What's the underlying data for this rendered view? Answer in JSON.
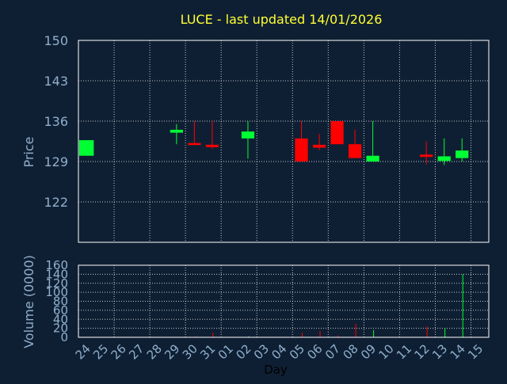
{
  "chart_data": {
    "type": "candlestick",
    "title": "LUCE - last updated 14/01/2026",
    "xlabel": "Day",
    "ylabel": "Price",
    "volume_label": "Volume (0000)",
    "x_ticks": [
      "24",
      "25",
      "26",
      "27",
      "28",
      "29",
      "30",
      "31",
      "01",
      "02",
      "03",
      "04",
      "05",
      "06",
      "07",
      "08",
      "09",
      "10",
      "11",
      "12",
      "13",
      "14",
      "15"
    ],
    "price_ticks": [
      122,
      129,
      136,
      143,
      150
    ],
    "price_ylim": [
      115,
      150
    ],
    "volume_ticks": [
      0,
      20,
      40,
      60,
      80,
      100,
      120,
      140,
      160
    ],
    "volume_ylim": [
      0,
      160
    ],
    "grid": true,
    "colors": {
      "up": "#00ff33",
      "down": "#ff0000",
      "title": "#ffff33",
      "axis": "#8fb0cc",
      "grid": "#ffffff"
    },
    "candles": [
      {
        "day": "24",
        "open": 130.0,
        "close": 132.7,
        "high": 132.7,
        "low": 130.0,
        "volume": 0
      },
      {
        "day": "29",
        "open": 134.0,
        "close": 134.5,
        "high": 135.5,
        "low": 132.0,
        "volume": 0
      },
      {
        "day": "30",
        "open": 132.2,
        "close": 131.9,
        "high": 136.0,
        "low": 131.9,
        "volume": 2
      },
      {
        "day": "31",
        "open": 131.9,
        "close": 131.5,
        "high": 136.0,
        "low": 131.2,
        "volume": 10
      },
      {
        "day": "02",
        "open": 133.0,
        "close": 134.2,
        "high": 136.0,
        "low": 129.5,
        "volume": 2
      },
      {
        "day": "05",
        "open": 133.0,
        "close": 129.0,
        "high": 136.0,
        "low": 129.0,
        "volume": 10
      },
      {
        "day": "06",
        "open": 131.9,
        "close": 131.4,
        "high": 133.8,
        "low": 131.0,
        "volume": 14
      },
      {
        "day": "07",
        "open": 136.0,
        "close": 132.0,
        "high": 136.0,
        "low": 132.0,
        "volume": 4
      },
      {
        "day": "08",
        "open": 132.0,
        "close": 129.6,
        "high": 134.5,
        "low": 129.6,
        "volume": 30
      },
      {
        "day": "09",
        "open": 129.0,
        "close": 130.0,
        "high": 136.0,
        "low": 129.0,
        "volume": 16
      },
      {
        "day": "12",
        "open": 130.2,
        "close": 129.8,
        "high": 132.5,
        "low": 128.5,
        "volume": 24
      },
      {
        "day": "13",
        "open": 129.1,
        "close": 129.9,
        "high": 133.0,
        "low": 128.4,
        "volume": 20
      },
      {
        "day": "14",
        "open": 129.6,
        "close": 130.9,
        "high": 133.0,
        "low": 129.0,
        "volume": 140
      }
    ]
  }
}
